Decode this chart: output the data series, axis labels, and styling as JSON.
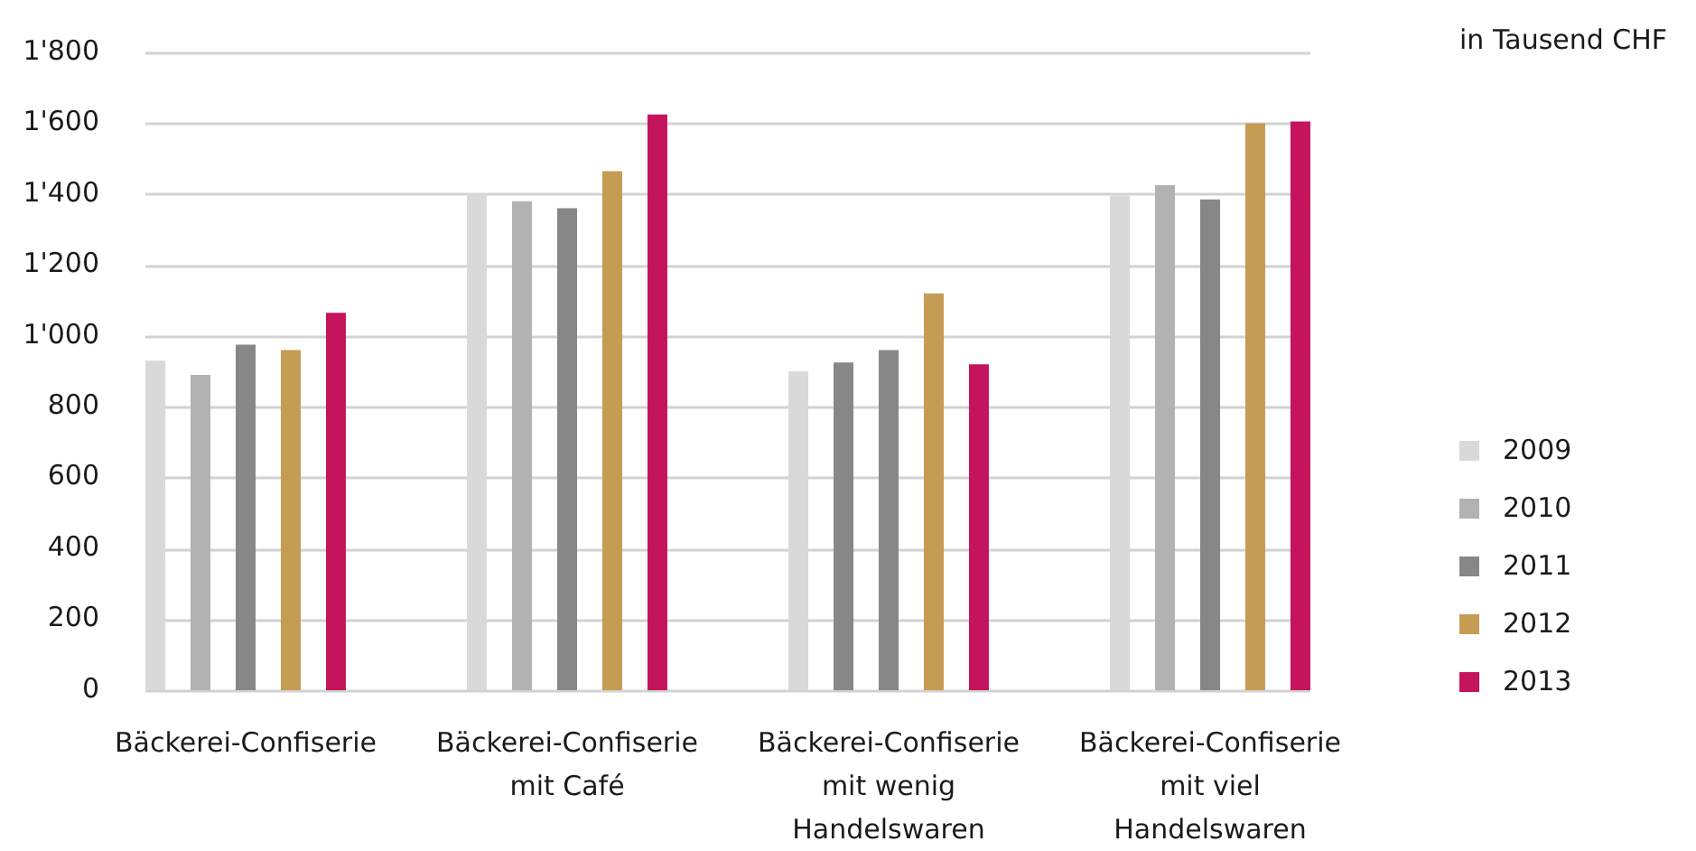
{
  "chart_data": {
    "type": "bar",
    "ylabel": "in Tausend CHF",
    "categories": [
      "Bäckerei-Confiserie",
      "Bäckerei-Confiserie mit Café",
      "Bäckerei-Confiserie mit wenig Handelswaren",
      "Bäckerei-Confiserie mit viel Handelswaren"
    ],
    "series": [
      {
        "name": "2009",
        "color": "#d9d9d9",
        "values": [
          930,
          1400,
          900,
          1395
        ]
      },
      {
        "name": "2010",
        "color": "#b2b2b2",
        "colors": [
          "#b2b2b2",
          "#b2b2b2",
          "#878787",
          "#b2b2b2"
        ],
        "values": [
          890,
          1380,
          925,
          1425
        ]
      },
      {
        "name": "2011",
        "color": "#878787",
        "values": [
          975,
          1360,
          960,
          1385
        ]
      },
      {
        "name": "2012",
        "color": "#c49c53",
        "values": [
          960,
          1465,
          1120,
          1600
        ]
      },
      {
        "name": "2013",
        "color": "#c4145c",
        "values": [
          1065,
          1625,
          920,
          1605
        ]
      }
    ],
    "ylim": [
      0,
      1800
    ],
    "yticks": [
      0,
      200,
      400,
      600,
      800,
      {
        "value": 1000,
        "label": "1'000"
      },
      {
        "value": 1200,
        "label": "1'200"
      },
      {
        "value": 1400,
        "label": "1'400"
      },
      {
        "value": 1600,
        "label": "1'600"
      },
      {
        "value": 1800,
        "label": "1'800"
      }
    ],
    "grid": "y",
    "legend": "bottom right"
  }
}
